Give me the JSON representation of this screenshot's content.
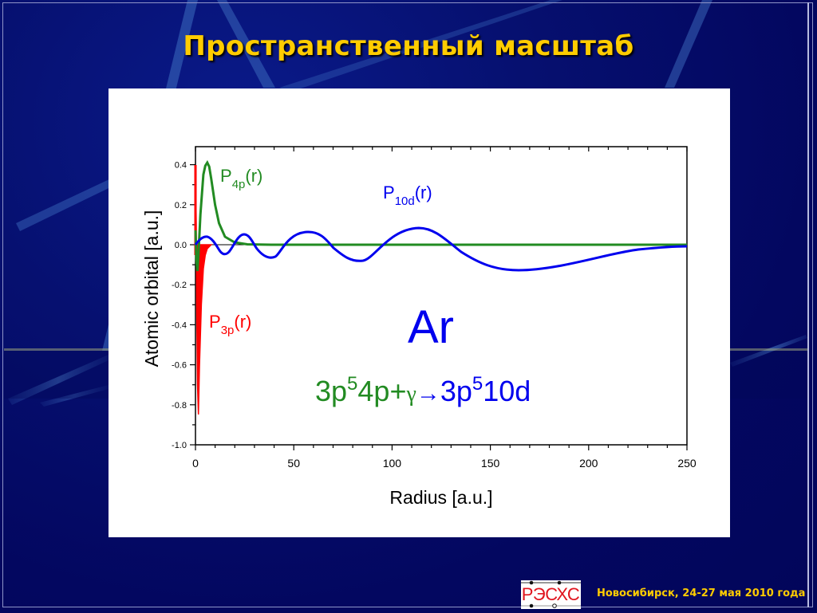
{
  "slide": {
    "title": "Пространственный масштаб",
    "footer": "Новосибирск, 24-27 мая 2010 года",
    "logo_text": "РЭСХС",
    "colors": {
      "background": "#03065e",
      "title": "#ffcc00",
      "p3p": "#ff0000",
      "p4p": "#228b22",
      "p10d": "#0000ee"
    }
  },
  "annotations": {
    "p4p_label": "P",
    "p4p_sub": "4p",
    "p4p_tail": "(r)",
    "p10d_label": "P",
    "p10d_sub": "10d",
    "p10d_tail": "(r)",
    "p3p_label": "P",
    "p3p_sub": "3p",
    "p3p_tail": "(r)",
    "element": "Ar",
    "reaction_left_a": "3p",
    "reaction_left_sup": "5",
    "reaction_left_b": "4p+",
    "reaction_gamma": "γ",
    "reaction_arrow": "→",
    "reaction_right_a": "3p",
    "reaction_right_sup": "5",
    "reaction_right_b": "10d"
  },
  "chart_data": {
    "type": "line",
    "title": "",
    "xlabel": "Radius [a.u.]",
    "ylabel": "Atomic orbital [a.u.]",
    "xlim": [
      0,
      250
    ],
    "ylim": [
      -1.0,
      0.5
    ],
    "x_ticks": [
      0,
      50,
      100,
      150,
      200,
      250
    ],
    "x_tick_labels": [
      "0",
      "50",
      "100",
      "150",
      "200",
      "250"
    ],
    "y_ticks": [
      0.4,
      0.2,
      0.0,
      -0.2,
      -0.4,
      -0.6,
      -0.8,
      -1.0
    ],
    "y_tick_labels": [
      "0.4",
      "0.2",
      "0.0",
      "-0.2",
      "-0.4",
      "-0.6",
      "-0.8",
      "-1.0"
    ],
    "grid": false,
    "legend": "inline labels",
    "series": [
      {
        "name": "P3p(r)",
        "color": "#ff0000",
        "x": [
          0,
          0.3,
          0.6,
          1.0,
          1.5,
          2.0,
          3.0,
          4.0,
          5.0,
          6.0,
          8.0
        ],
        "y": [
          0.4,
          0.1,
          -0.3,
          -0.7,
          -0.85,
          -0.6,
          -0.3,
          -0.12,
          -0.05,
          -0.02,
          0.0
        ]
      },
      {
        "name": "P4p(r)",
        "color": "#228b22",
        "x": [
          0,
          0.5,
          1.0,
          1.5,
          2.5,
          4.0,
          6.0,
          8.0,
          10.0,
          12.0,
          15.0,
          20.0,
          30.0,
          250.0
        ],
        "y": [
          0.07,
          -0.08,
          -0.13,
          -0.05,
          0.15,
          0.35,
          0.41,
          0.33,
          0.2,
          0.11,
          0.04,
          0.01,
          0.0,
          0.0
        ]
      },
      {
        "name": "P10d(r)",
        "color": "#0000ee",
        "x": [
          0,
          6,
          12,
          18,
          25,
          31,
          39,
          47,
          57,
          68,
          80,
          97,
          113,
          135,
          167,
          200,
          250
        ],
        "y": [
          0.0,
          0.04,
          0.0,
          -0.045,
          0.05,
          0.0,
          -0.06,
          0.0,
          0.08,
          0.0,
          -0.08,
          0.0,
          0.09,
          0.0,
          -0.125,
          -0.06,
          -0.01
        ]
      }
    ]
  }
}
